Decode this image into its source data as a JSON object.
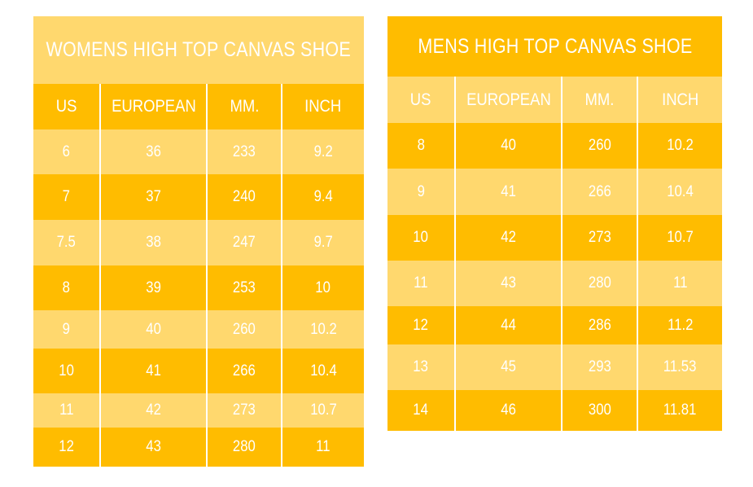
{
  "women": {
    "title": "WOMENS HIGH TOP CANVAS SHOE",
    "headers": [
      "US",
      "EUROPEAN",
      "MM.",
      "INCH"
    ],
    "rows": [
      [
        "6",
        "36",
        "233",
        "9.2"
      ],
      [
        "7",
        "37",
        "240",
        "9.4"
      ],
      [
        "7.5",
        "38",
        "247",
        "9.7"
      ],
      [
        "8",
        "39",
        "253",
        "10"
      ],
      [
        "9",
        "40",
        "260",
        "10.2"
      ],
      [
        "10",
        "41",
        "266",
        "10.4"
      ],
      [
        "11",
        "42",
        "273",
        "10.7"
      ],
      [
        "12",
        "43",
        "280",
        "11"
      ]
    ]
  },
  "men": {
    "title": "MENS HIGH TOP CANVAS SHOE",
    "headers": [
      "US",
      "EUROPEAN",
      "MM.",
      "INCH"
    ],
    "rows": [
      [
        "8",
        "40",
        "260",
        "10.2"
      ],
      [
        "9",
        "41",
        "266",
        "10.4"
      ],
      [
        "10",
        "42",
        "273",
        "10.7"
      ],
      [
        "11",
        "43",
        "280",
        "11"
      ],
      [
        "12",
        "44",
        "286",
        "11.2"
      ],
      [
        "13",
        "45",
        "293",
        "11.53"
      ],
      [
        "14",
        "46",
        "300",
        "11.81"
      ]
    ]
  },
  "colors": {
    "light": "#ffd86e",
    "dark": "#ffbc00",
    "text": "#ffffff"
  }
}
